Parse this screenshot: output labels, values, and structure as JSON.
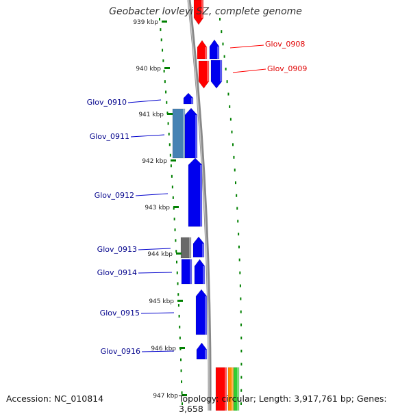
{
  "title": "Geobacter lovleyi SZ, complete genome",
  "accession": "Accession: NC_010814",
  "topology": "Topology: circular; Length: 3,917,761 bp; Genes: 3,658",
  "colors": {
    "blue": "#0000ee",
    "steel_blue": "#4682b4",
    "gray": "#696969",
    "red": "#ff0000",
    "backbone": "#888888",
    "tick": "#008000",
    "blue_label": "#00008b",
    "red_label": "#e00000"
  },
  "ticks": [
    "939 kbp",
    "940 kbp",
    "941 kbp",
    "942 kbp",
    "943 kbp",
    "944 kbp",
    "945 kbp",
    "946 kbp",
    "947 kbp"
  ],
  "gene_labels": [
    {
      "name": "Glov_0908",
      "color": "red"
    },
    {
      "name": "Glov_0909",
      "color": "red"
    },
    {
      "name": "Glov_0910",
      "color": "blue"
    },
    {
      "name": "Glov_0911",
      "color": "blue"
    },
    {
      "name": "Glov_0912",
      "color": "blue"
    },
    {
      "name": "Glov_0913",
      "color": "blue"
    },
    {
      "name": "Glov_0914",
      "color": "blue"
    },
    {
      "name": "Glov_0915",
      "color": "blue"
    },
    {
      "name": "Glov_0916",
      "color": "blue"
    }
  ]
}
